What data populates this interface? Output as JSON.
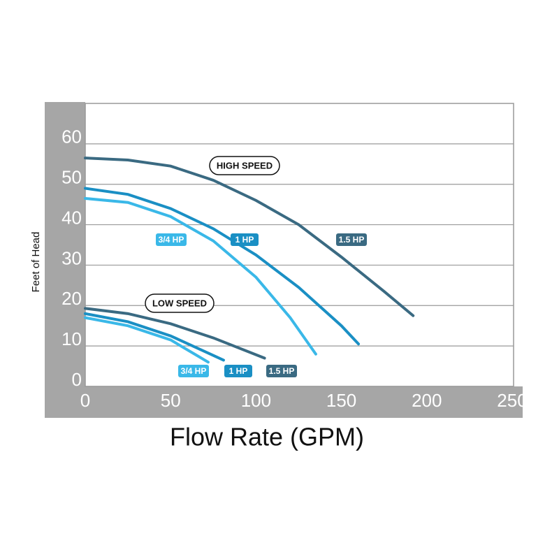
{
  "chart_data": {
    "type": "line",
    "xlabel": "Flow Rate (GPM)",
    "ylabel": "Feet of Head",
    "xlim": [
      0,
      250
    ],
    "xticks": [
      0,
      50,
      100,
      150,
      200,
      250
    ],
    "ylim": [
      0,
      70
    ],
    "yticks": [
      0,
      10,
      20,
      30,
      40,
      50,
      60
    ],
    "grid": true,
    "annotations": [
      "HIGH SPEED",
      "LOW SPEED"
    ],
    "series": [
      {
        "name": "3/4 HP",
        "color": "#3ab8e8",
        "x": [
          0,
          25,
          50,
          75,
          100,
          120,
          135
        ],
        "values": [
          46.5,
          45.5,
          42,
          36,
          27,
          17,
          8
        ]
      },
      {
        "name": "1 HP",
        "color": "#1a8fc4",
        "x": [
          0,
          25,
          50,
          75,
          100,
          125,
          150,
          160
        ],
        "values": [
          49,
          47.5,
          44,
          39,
          32.5,
          24.5,
          15,
          10.5
        ]
      },
      {
        "name": "1.5 HP",
        "color": "#3a6a82",
        "x": [
          0,
          25,
          50,
          75,
          100,
          125,
          150,
          175,
          192
        ],
        "values": [
          56.5,
          56,
          54.5,
          51,
          46,
          40,
          32,
          23.5,
          17.5
        ]
      },
      {
        "name": "3/4 HP",
        "color": "#3ab8e8",
        "x": [
          0,
          25,
          50,
          72
        ],
        "values": [
          17,
          15,
          11.5,
          6
        ]
      },
      {
        "name": "1 HP",
        "color": "#1a8fc4",
        "x": [
          0,
          25,
          50,
          81
        ],
        "values": [
          18,
          16,
          12.5,
          6.5
        ]
      },
      {
        "name": "1.5 HP",
        "color": "#3a6a82",
        "x": [
          0,
          25,
          50,
          75,
          105
        ],
        "values": [
          19.3,
          18,
          15.5,
          12,
          7
        ]
      }
    ]
  }
}
